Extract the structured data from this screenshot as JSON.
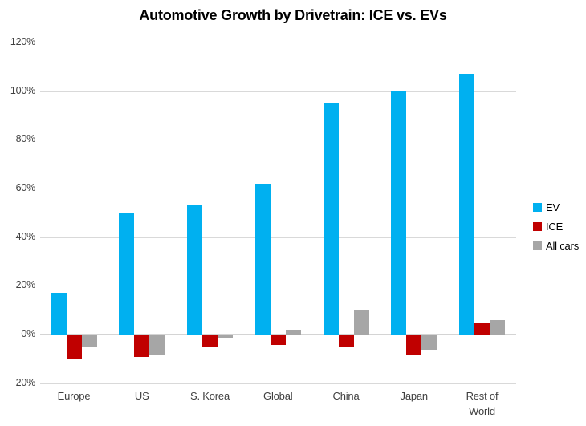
{
  "title": "Automotive Growth by Drivetrain: ICE vs. EVs",
  "colors": {
    "ev": "#00B0F0",
    "ice": "#C00000",
    "all_cars": "#A6A6A6",
    "gridline": "#D9D9D9",
    "axis_text": "#404040",
    "title_text": "#000000",
    "background": "#FFFFFF"
  },
  "legend": {
    "position": "right",
    "items": [
      {
        "label": "EV",
        "color": "#00B0F0"
      },
      {
        "label": "ICE",
        "color": "#C00000"
      },
      {
        "label": "All cars",
        "color": "#A6A6A6"
      }
    ]
  },
  "chart_data": {
    "type": "bar",
    "title": "Automotive Growth by Drivetrain: ICE vs. EVs",
    "categories": [
      "Europe",
      "US",
      "S. Korea",
      "Global",
      "China",
      "Japan",
      "Rest of World"
    ],
    "series": [
      {
        "name": "EV",
        "color": "#00B0F0",
        "values": [
          17,
          50,
          53,
          62,
          95,
          100,
          107
        ]
      },
      {
        "name": "ICE",
        "color": "#C00000",
        "values": [
          -10,
          -9,
          -5,
          -4,
          -5,
          -8,
          5
        ]
      },
      {
        "name": "All cars",
        "color": "#A6A6A6",
        "values": [
          -5,
          -8,
          -1,
          2,
          10,
          -6,
          6
        ]
      }
    ],
    "xlabel": "",
    "ylabel": "",
    "ylim": [
      -20,
      120
    ],
    "yticks": [
      120,
      100,
      80,
      60,
      40,
      20,
      0,
      -20
    ],
    "ytick_labels": [
      "120%",
      "100%",
      "80%",
      "60%",
      "40%",
      "20%",
      "0%",
      "-20%"
    ],
    "value_format": "percent",
    "grid": true,
    "legend_position": "right"
  }
}
